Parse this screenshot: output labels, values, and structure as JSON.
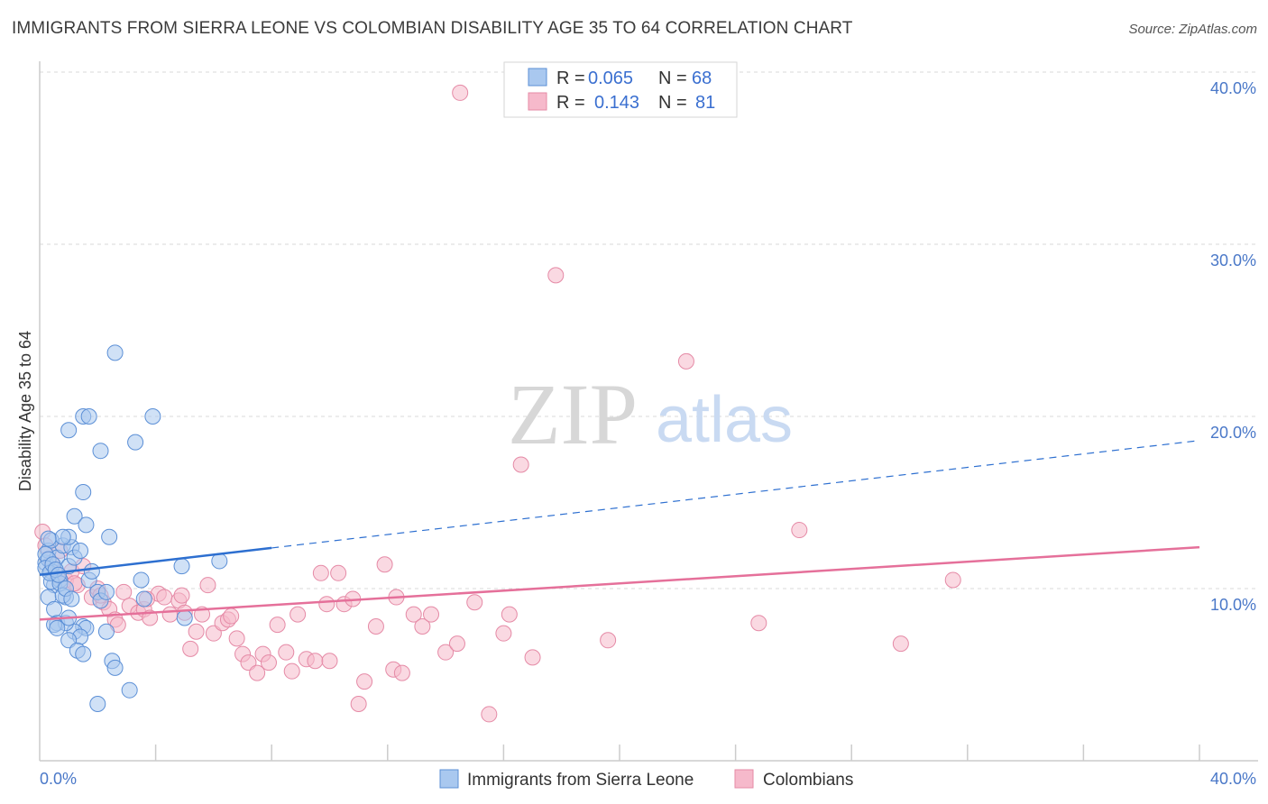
{
  "title": "IMMIGRANTS FROM SIERRA LEONE VS COLOMBIAN DISABILITY AGE 35 TO 64 CORRELATION CHART",
  "source": "Source: ZipAtlas.com",
  "watermark": {
    "zip": "ZIP",
    "atlas": "atlas"
  },
  "colors": {
    "blue_fill": "#a9c8ef",
    "blue_stroke": "#5b8fd6",
    "blue_line": "#2d6fd0",
    "pink_fill": "#f6b9cb",
    "pink_stroke": "#e58aa6",
    "pink_line": "#e5709a",
    "grid": "#d9d9d9",
    "axis": "#cccccc",
    "tick_label": "#4a78c8"
  },
  "chart_data": {
    "type": "scatter",
    "title": "IMMIGRANTS FROM SIERRA LEONE VS COLOMBIAN DISABILITY AGE 35 TO 64 CORRELATION CHART",
    "xlabel": "",
    "ylabel": "Disability Age 35 to 64",
    "xlim": [
      0,
      40
    ],
    "ylim": [
      0,
      40
    ],
    "x_tick_labels": [
      "0.0%",
      "40.0%"
    ],
    "y_ticks": [
      10,
      20,
      30,
      40
    ],
    "y_tick_labels": [
      "10.0%",
      "20.0%",
      "30.0%",
      "40.0%"
    ],
    "grid": true,
    "legend": [
      {
        "series": "Immigrants from Sierra Leone",
        "r_label": "R =",
        "r_value": "0.065",
        "n_label": "N =",
        "n_value": "68"
      },
      {
        "series": "Colombians",
        "r_label": "R =",
        "r_value": "0.143",
        "n_label": "N =",
        "n_value": "81"
      }
    ],
    "series": [
      {
        "name": "Immigrants from Sierra Leone",
        "color": "#a9c8ef",
        "trend": {
          "x0": 0,
          "y0": 10.8,
          "x1": 40,
          "y1": 18.6,
          "solid_until": 8
        },
        "points": [
          [
            0.2,
            11.5
          ],
          [
            0.3,
            12.2
          ],
          [
            0.4,
            11.0
          ],
          [
            0.5,
            10.2
          ],
          [
            0.3,
            9.5
          ],
          [
            0.6,
            11.8
          ],
          [
            0.7,
            10.5
          ],
          [
            0.8,
            12.5
          ],
          [
            0.4,
            12.8
          ],
          [
            0.5,
            8.8
          ],
          [
            0.6,
            8.0
          ],
          [
            0.9,
            9.5
          ],
          [
            1.0,
            11.3
          ],
          [
            1.1,
            12.4
          ],
          [
            1.2,
            11.8
          ],
          [
            1.0,
            13.0
          ],
          [
            0.8,
            13.0
          ],
          [
            1.2,
            14.2
          ],
          [
            1.4,
            12.2
          ],
          [
            1.6,
            13.7
          ],
          [
            1.5,
            15.6
          ],
          [
            1.7,
            10.5
          ],
          [
            1.8,
            11.0
          ],
          [
            2.0,
            9.8
          ],
          [
            2.1,
            9.3
          ],
          [
            2.3,
            9.8
          ],
          [
            1.5,
            7.8
          ],
          [
            1.6,
            7.7
          ],
          [
            1.2,
            7.5
          ],
          [
            1.4,
            7.2
          ],
          [
            1.0,
            7.0
          ],
          [
            0.9,
            8.0
          ],
          [
            1.3,
            6.4
          ],
          [
            1.5,
            6.2
          ],
          [
            2.3,
            7.5
          ],
          [
            2.5,
            5.8
          ],
          [
            2.6,
            5.4
          ],
          [
            3.1,
            4.1
          ],
          [
            2.0,
            3.3
          ],
          [
            1.0,
            19.2
          ],
          [
            1.5,
            20.0
          ],
          [
            1.7,
            20.0
          ],
          [
            2.1,
            18.0
          ],
          [
            3.3,
            18.5
          ],
          [
            3.9,
            20.0
          ],
          [
            2.6,
            23.7
          ],
          [
            2.4,
            13.0
          ],
          [
            3.5,
            10.5
          ],
          [
            3.6,
            9.4
          ],
          [
            4.9,
            11.3
          ],
          [
            5.0,
            8.3
          ],
          [
            6.2,
            11.6
          ],
          [
            0.2,
            12.0
          ],
          [
            0.3,
            11.7
          ],
          [
            0.4,
            10.4
          ],
          [
            0.5,
            7.9
          ],
          [
            0.6,
            7.7
          ],
          [
            0.7,
            10.3
          ],
          [
            0.8,
            9.6
          ],
          [
            0.9,
            10.0
          ],
          [
            1.0,
            8.3
          ],
          [
            1.1,
            9.4
          ],
          [
            0.2,
            11.2
          ],
          [
            0.3,
            12.9
          ],
          [
            0.35,
            10.9
          ],
          [
            0.45,
            11.4
          ],
          [
            0.55,
            11.1
          ],
          [
            0.65,
            10.8
          ]
        ]
      },
      {
        "name": "Colombians",
        "color": "#f6b9cb",
        "trend": {
          "x0": 0,
          "y0": 8.2,
          "x1": 40,
          "y1": 12.4
        },
        "points": [
          [
            0.1,
            13.3
          ],
          [
            0.2,
            12.5
          ],
          [
            0.4,
            11.5
          ],
          [
            0.6,
            10.8
          ],
          [
            0.9,
            10.5
          ],
          [
            1.1,
            11.0
          ],
          [
            1.3,
            10.2
          ],
          [
            1.5,
            11.3
          ],
          [
            1.8,
            9.5
          ],
          [
            2.0,
            10.0
          ],
          [
            2.2,
            9.2
          ],
          [
            2.4,
            8.8
          ],
          [
            2.6,
            8.2
          ],
          [
            2.9,
            9.8
          ],
          [
            3.1,
            9.0
          ],
          [
            3.4,
            8.6
          ],
          [
            3.6,
            8.8
          ],
          [
            3.8,
            8.3
          ],
          [
            4.1,
            9.7
          ],
          [
            4.3,
            9.5
          ],
          [
            4.5,
            8.5
          ],
          [
            4.8,
            9.3
          ],
          [
            5.0,
            8.6
          ],
          [
            5.2,
            6.5
          ],
          [
            5.4,
            7.5
          ],
          [
            5.6,
            8.5
          ],
          [
            5.8,
            10.2
          ],
          [
            6.0,
            7.4
          ],
          [
            6.3,
            8.0
          ],
          [
            6.5,
            8.2
          ],
          [
            6.8,
            7.1
          ],
          [
            7.0,
            6.2
          ],
          [
            7.2,
            5.7
          ],
          [
            7.5,
            5.1
          ],
          [
            7.7,
            6.2
          ],
          [
            7.9,
            5.7
          ],
          [
            8.2,
            7.9
          ],
          [
            8.5,
            6.3
          ],
          [
            8.7,
            5.2
          ],
          [
            8.9,
            8.5
          ],
          [
            9.2,
            5.9
          ],
          [
            9.5,
            5.8
          ],
          [
            9.7,
            10.9
          ],
          [
            10.0,
            5.8
          ],
          [
            10.3,
            10.9
          ],
          [
            10.5,
            9.1
          ],
          [
            10.8,
            9.4
          ],
          [
            11.0,
            3.3
          ],
          [
            11.2,
            4.6
          ],
          [
            11.6,
            7.8
          ],
          [
            11.9,
            11.4
          ],
          [
            12.2,
            5.3
          ],
          [
            12.5,
            5.1
          ],
          [
            12.9,
            8.5
          ],
          [
            13.2,
            7.8
          ],
          [
            13.5,
            8.5
          ],
          [
            14.0,
            6.3
          ],
          [
            14.4,
            6.8
          ],
          [
            15.0,
            9.2
          ],
          [
            15.5,
            2.7
          ],
          [
            16.0,
            7.4
          ],
          [
            16.2,
            8.5
          ],
          [
            16.6,
            17.2
          ],
          [
            17.0,
            6.0
          ],
          [
            17.8,
            28.2
          ],
          [
            19.6,
            7.0
          ],
          [
            22.3,
            23.2
          ],
          [
            24.8,
            8.0
          ],
          [
            26.2,
            13.4
          ],
          [
            29.7,
            6.8
          ],
          [
            31.5,
            10.5
          ],
          [
            14.5,
            38.8
          ],
          [
            12.3,
            9.5
          ],
          [
            2.1,
            9.6
          ],
          [
            3.7,
            9.4
          ],
          [
            6.6,
            8.4
          ],
          [
            4.9,
            9.6
          ],
          [
            1.2,
            10.3
          ],
          [
            0.7,
            12.2
          ],
          [
            2.7,
            7.9
          ],
          [
            9.9,
            9.1
          ]
        ]
      }
    ]
  },
  "bottom_legend": [
    {
      "label": "Immigrants from Sierra Leone"
    },
    {
      "label": "Colombians"
    }
  ]
}
